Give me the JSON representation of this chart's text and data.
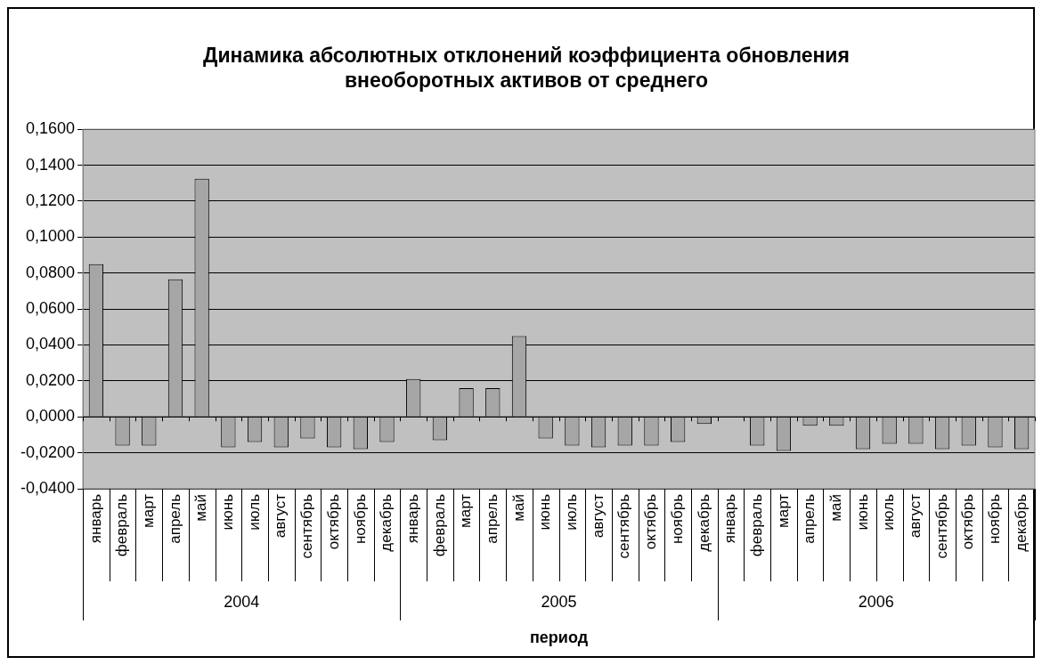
{
  "chart_data": {
    "type": "bar",
    "title": "Динамика абсолютных отклонений коэффициента обновления внеоборотных активов от среднего",
    "xlabel": "период",
    "categories": [
      "январь",
      "февраль",
      "март",
      "апрель",
      "май",
      "июнь",
      "июль",
      "август",
      "сентябрь",
      "октябрь",
      "ноябрь",
      "декабрь",
      "январь",
      "февраль",
      "март",
      "апрель",
      "май",
      "июнь",
      "июль",
      "август",
      "сентябрь",
      "октябрь",
      "ноябрь",
      "декабрь",
      "январь",
      "февраль",
      "март",
      "апрель",
      "май",
      "июнь",
      "июль",
      "август",
      "сентябрь",
      "октябрь",
      "ноябрь",
      "декабрь"
    ],
    "values": [
      0.085,
      -0.016,
      -0.016,
      0.0765,
      0.1325,
      -0.017,
      -0.014,
      -0.017,
      -0.012,
      -0.017,
      -0.018,
      -0.014,
      0.021,
      -0.013,
      0.016,
      0.016,
      0.045,
      -0.012,
      -0.016,
      -0.017,
      -0.016,
      -0.016,
      -0.014,
      -0.004,
      0,
      -0.016,
      -0.019,
      -0.005,
      -0.005,
      -0.018,
      -0.015,
      -0.015,
      -0.018,
      -0.016,
      -0.017,
      -0.018
    ],
    "color": "#a6a6a6",
    "ylim": [
      -0.04,
      0.16
    ],
    "yticks": [
      {
        "value": -0.04,
        "label": "-0,0400"
      },
      {
        "value": -0.02,
        "label": "-0,0200"
      },
      {
        "value": 0,
        "label": "0,0000"
      },
      {
        "value": 0.02,
        "label": "0,0200"
      },
      {
        "value": 0.04,
        "label": "0,0400"
      },
      {
        "value": 0.06,
        "label": "0,0600"
      },
      {
        "value": 0.08,
        "label": "0,0800"
      },
      {
        "value": 0.1,
        "label": "0,1000"
      },
      {
        "value": 0.12,
        "label": "0,1200"
      },
      {
        "value": 0.14,
        "label": "0,1400"
      },
      {
        "value": 0.16,
        "label": "0,1600"
      }
    ],
    "grid": "y",
    "annotations": [
      "2004",
      "2005",
      "2006"
    ]
  }
}
